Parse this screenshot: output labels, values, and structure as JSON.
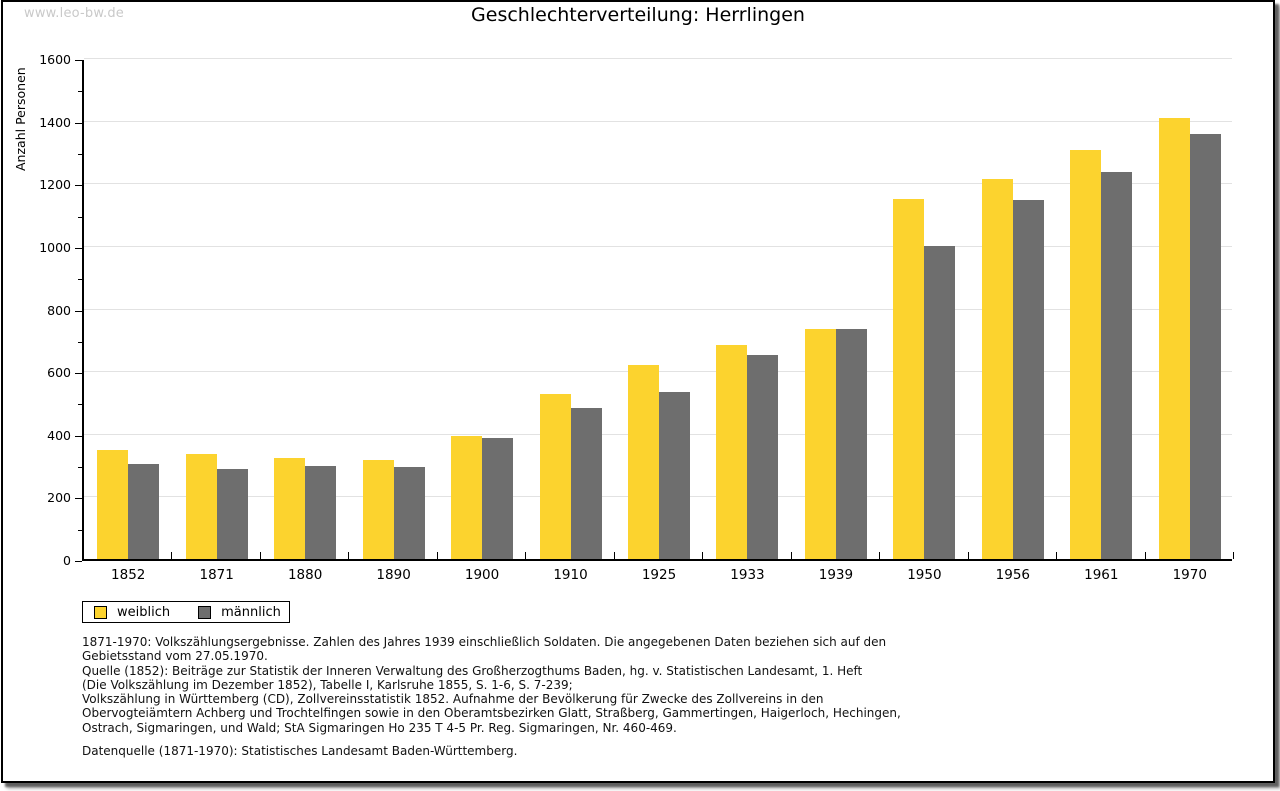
{
  "page": {
    "watermark": "www.leo-bw.de",
    "title": "Geschlechterverteilung: Herrlingen"
  },
  "colors": {
    "weiblich": "#fcd32e",
    "maennlich": "#6e6e6e",
    "gridline": "#e2e2e2",
    "axis": "#000000",
    "watermark": "#c9c9c9"
  },
  "chart_data": {
    "type": "bar",
    "title": "Geschlechterverteilung: Herrlingen",
    "xlabel": "",
    "ylabel": "Anzahl Personen",
    "ylim": [
      0,
      1600
    ],
    "ytick_step_major": 200,
    "ytick_step_minor": 100,
    "grid": "horizontal",
    "legend_position": "bottom-left",
    "categories": [
      "1852",
      "1871",
      "1880",
      "1890",
      "1900",
      "1910",
      "1925",
      "1933",
      "1939",
      "1950",
      "1956",
      "1961",
      "1970"
    ],
    "series": [
      {
        "name": "weiblich",
        "color": "#fcd32e",
        "values": [
          348,
          335,
          322,
          316,
          393,
          527,
          619,
          684,
          736,
          1149,
          1214,
          1307,
          1410
        ]
      },
      {
        "name": "männlich",
        "color": "#6e6e6e",
        "values": [
          304,
          288,
          297,
          293,
          386,
          483,
          534,
          651,
          736,
          1000,
          1146,
          1237,
          1358
        ]
      }
    ]
  },
  "legend": {
    "items": [
      {
        "label": "weiblich",
        "color": "#fcd32e"
      },
      {
        "label": "männlich",
        "color": "#6e6e6e"
      }
    ]
  },
  "footnotes": {
    "lines": [
      "1871-1970: Volkszählungsergebnisse. Zahlen des Jahres 1939 einschließlich Soldaten. Die angegebenen Daten beziehen sich auf den",
      "Gebietsstand vom 27.05.1970.",
      "Quelle (1852): Beiträge zur Statistik der Inneren Verwaltung des Großherzogthums Baden, hg. v. Statistischen Landesamt, 1. Heft",
      "(Die Volkszählung im Dezember 1852), Tabelle I, Karlsruhe 1855, S. 1-6, S. 7-239;",
      "Volkszählung in Württemberg (CD), Zollvereinsstatistik 1852. Aufnahme der Bevölkerung für Zwecke des Zollvereins in den",
      "Obervogteiämtern Achberg und Trochtelfingen sowie in den Oberamtsbezirken Glatt, Straßberg, Gammertingen, Haigerloch, Hechingen,",
      "Ostrach, Sigmaringen, und Wald; StA Sigmaringen Ho 235 T 4-5 Pr. Reg. Sigmaringen, Nr. 460-469."
    ],
    "datasource": "Datenquelle (1871-1970): Statistisches Landesamt Baden-Württemberg."
  }
}
